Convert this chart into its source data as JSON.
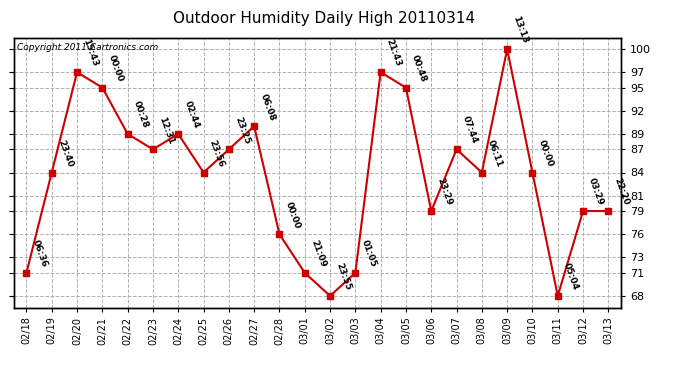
{
  "title": "Outdoor Humidity Daily High 20110314",
  "copyright": "Copyright 2011 Cartronics.com",
  "line_color": "#cc0000",
  "marker_color": "#cc0000",
  "bg_color": "#ffffff",
  "grid_color": "#b0b0b0",
  "points": [
    {
      "x": "02/18",
      "y": 71,
      "label": "06:36"
    },
    {
      "x": "02/19",
      "y": 84,
      "label": "23:40"
    },
    {
      "x": "02/20",
      "y": 97,
      "label": "15:43"
    },
    {
      "x": "02/21",
      "y": 95,
      "label": "00:00"
    },
    {
      "x": "02/22",
      "y": 89,
      "label": "00:28"
    },
    {
      "x": "02/23",
      "y": 87,
      "label": "12:31"
    },
    {
      "x": "02/24",
      "y": 89,
      "label": "02:44"
    },
    {
      "x": "02/25",
      "y": 84,
      "label": "23:56"
    },
    {
      "x": "02/26",
      "y": 87,
      "label": "23:25"
    },
    {
      "x": "02/27",
      "y": 90,
      "label": "06:08"
    },
    {
      "x": "02/28",
      "y": 76,
      "label": "00:00"
    },
    {
      "x": "03/01",
      "y": 71,
      "label": "21:09"
    },
    {
      "x": "03/02",
      "y": 68,
      "label": "23:55"
    },
    {
      "x": "03/03",
      "y": 71,
      "label": "01:05"
    },
    {
      "x": "03/04",
      "y": 97,
      "label": "21:43"
    },
    {
      "x": "03/05",
      "y": 95,
      "label": "00:48"
    },
    {
      "x": "03/06",
      "y": 79,
      "label": "23:29"
    },
    {
      "x": "03/07",
      "y": 87,
      "label": "07:44"
    },
    {
      "x": "03/08",
      "y": 84,
      "label": "06:11"
    },
    {
      "x": "03/09",
      "y": 100,
      "label": "13:13"
    },
    {
      "x": "03/10",
      "y": 84,
      "label": "00:00"
    },
    {
      "x": "03/11",
      "y": 68,
      "label": "05:04"
    },
    {
      "x": "03/12",
      "y": 79,
      "label": "03:29"
    },
    {
      "x": "03/13",
      "y": 79,
      "label": "22:20"
    }
  ],
  "yticks": [
    68,
    71,
    73,
    76,
    79,
    81,
    84,
    87,
    89,
    92,
    95,
    97,
    100
  ],
  "ylim": [
    66.5,
    101.5
  ],
  "title_fontsize": 11,
  "annot_fontsize": 6.5,
  "tick_fontsize": 8,
  "xtick_fontsize": 7
}
